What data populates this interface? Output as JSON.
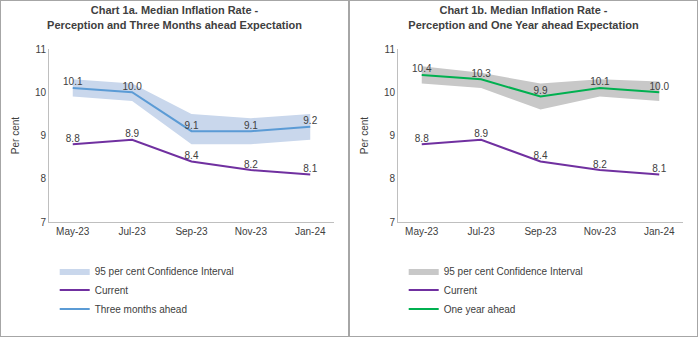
{
  "chart_data": [
    {
      "type": "line",
      "title": "Chart 1a. Median Inflation Rate -\nPerception and Three Months ahead Expectation",
      "y_label": "Per cent",
      "categories": [
        "May-23",
        "Jul-23",
        "Sep-23",
        "Nov-23",
        "Jan-24"
      ],
      "ylim": [
        7,
        11
      ],
      "yticks": [
        7,
        8,
        9,
        10,
        11
      ],
      "grid": false,
      "legend": "bottom",
      "data_labels": true,
      "series": [
        {
          "name": "95 per cent Confidence Interval",
          "type": "band",
          "color": "#c9d7ec",
          "lower": [
            9.9,
            9.8,
            8.8,
            8.8,
            8.9
          ],
          "upper": [
            10.3,
            10.2,
            9.5,
            9.4,
            9.5
          ]
        },
        {
          "name": "Current",
          "type": "line",
          "color": "#7030a0",
          "values": [
            8.8,
            8.9,
            8.4,
            8.2,
            8.1
          ]
        },
        {
          "name": "Three months ahead",
          "type": "line",
          "color": "#5b9bd5",
          "values": [
            10.1,
            10.0,
            9.1,
            9.1,
            9.2
          ]
        }
      ]
    },
    {
      "type": "line",
      "title": "Chart 1b. Median Inflation Rate -\nPerception and One Year ahead Expectation",
      "y_label": "Per cent",
      "categories": [
        "May-23",
        "Jul-23",
        "Sep-23",
        "Nov-23",
        "Jan-24"
      ],
      "ylim": [
        7,
        11
      ],
      "yticks": [
        7,
        8,
        9,
        10,
        11
      ],
      "grid": false,
      "legend": "bottom",
      "data_labels": true,
      "series": [
        {
          "name": "95 per cent Confidence Interval",
          "type": "band",
          "color": "#c8c8c8",
          "lower": [
            10.2,
            10.1,
            9.6,
            9.9,
            9.8
          ],
          "upper": [
            10.6,
            10.45,
            10.2,
            10.3,
            10.25
          ]
        },
        {
          "name": "Current",
          "type": "line",
          "color": "#7030a0",
          "values": [
            8.8,
            8.9,
            8.4,
            8.2,
            8.1
          ]
        },
        {
          "name": "One year ahead",
          "type": "line",
          "color": "#00b050",
          "values": [
            10.4,
            10.3,
            9.9,
            10.1,
            10.0
          ]
        }
      ]
    }
  ]
}
